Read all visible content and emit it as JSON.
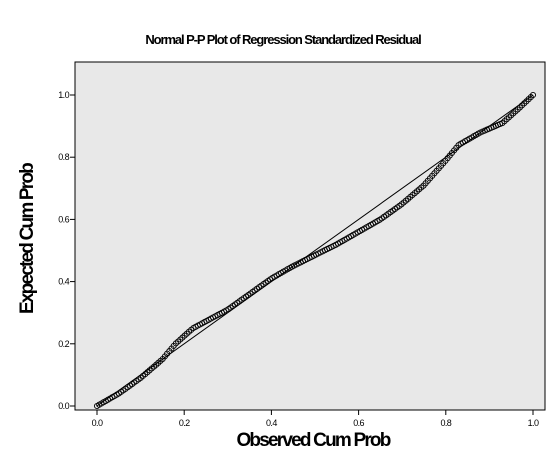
{
  "chart_data": {
    "type": "scatter",
    "title": "Normal P-P Plot of Regression Standardized Residual",
    "xlabel": "Observed Cum Prob",
    "ylabel": "Expected Cum Prob",
    "xlim": [
      0,
      1
    ],
    "ylim": [
      0,
      1
    ],
    "x_ticks": [
      0,
      0.2,
      0.4,
      0.6,
      0.8,
      1
    ],
    "y_ticks": [
      0,
      0.2,
      0.4,
      0.6,
      0.8,
      1
    ],
    "x_tick_labels": [
      "0.0",
      "0.2",
      "0.4",
      "0.6",
      "0.8",
      "1.0"
    ],
    "y_tick_labels": [
      "0.0",
      "0.2",
      "0.4",
      "0.6",
      "0.8",
      "1.0"
    ],
    "reference_line": {
      "from": [
        0,
        0
      ],
      "to": [
        1,
        1
      ]
    },
    "grid": false,
    "curve": [
      [
        0.0,
        0.0
      ],
      [
        0.05,
        0.04
      ],
      [
        0.1,
        0.09
      ],
      [
        0.15,
        0.15
      ],
      [
        0.18,
        0.2
      ],
      [
        0.22,
        0.25
      ],
      [
        0.3,
        0.31
      ],
      [
        0.35,
        0.36
      ],
      [
        0.4,
        0.41
      ],
      [
        0.45,
        0.45
      ],
      [
        0.5,
        0.485
      ],
      [
        0.55,
        0.52
      ],
      [
        0.6,
        0.56
      ],
      [
        0.65,
        0.6
      ],
      [
        0.7,
        0.65
      ],
      [
        0.75,
        0.71
      ],
      [
        0.8,
        0.79
      ],
      [
        0.83,
        0.84
      ],
      [
        0.88,
        0.88
      ],
      [
        0.93,
        0.91
      ],
      [
        0.97,
        0.96
      ],
      [
        1.0,
        1.0
      ]
    ],
    "n_points": 200,
    "colors": {
      "plot_background": "#e8e8e8",
      "marker": "#000000",
      "line": "#000000"
    }
  }
}
